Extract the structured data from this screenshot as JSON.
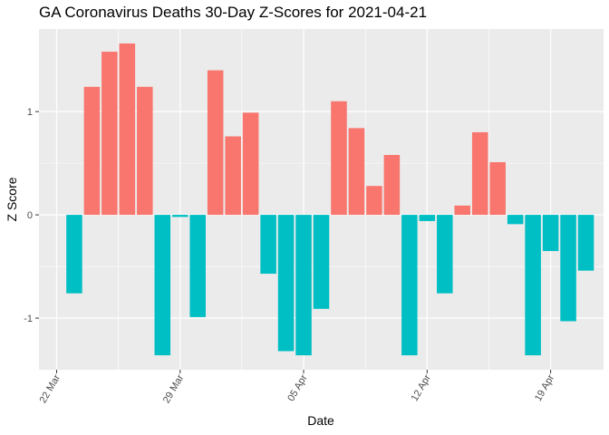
{
  "chart_data": {
    "type": "bar",
    "title": "GA Coronavirus Deaths 30-Day Z-Scores for 2021-04-21",
    "xlabel": "Date",
    "ylabel": "Z Score",
    "x_ticks": [
      {
        "label": "22 Mar",
        "day": 0
      },
      {
        "label": "29 Mar",
        "day": 7
      },
      {
        "label": "05 Apr",
        "day": 14
      },
      {
        "label": "12 Apr",
        "day": 21
      },
      {
        "label": "19 Apr",
        "day": 28
      }
    ],
    "xlim_days": [
      -1,
      31
    ],
    "y_ticks": [
      -1,
      0,
      1
    ],
    "ylim": [
      -1.5,
      1.8
    ],
    "colors": {
      "positive": "#F8766D",
      "negative": "#00BFC4"
    },
    "dates": [
      "2021-03-23",
      "2021-03-24",
      "2021-03-25",
      "2021-03-26",
      "2021-03-27",
      "2021-03-28",
      "2021-03-29",
      "2021-03-30",
      "2021-03-31",
      "2021-04-01",
      "2021-04-02",
      "2021-04-03",
      "2021-04-04",
      "2021-04-05",
      "2021-04-06",
      "2021-04-07",
      "2021-04-08",
      "2021-04-09",
      "2021-04-10",
      "2021-04-11",
      "2021-04-12",
      "2021-04-13",
      "2021-04-14",
      "2021-04-15",
      "2021-04-16",
      "2021-04-17",
      "2021-04-18",
      "2021-04-19",
      "2021-04-20",
      "2021-04-21"
    ],
    "values": [
      -0.76,
      1.24,
      1.58,
      1.66,
      1.24,
      -1.36,
      -0.02,
      -0.99,
      1.4,
      0.76,
      0.99,
      -0.57,
      -1.32,
      -1.36,
      -0.91,
      1.1,
      0.84,
      0.28,
      0.58,
      -1.36,
      -0.06,
      -0.76,
      0.09,
      0.8,
      0.51,
      -0.09,
      -1.36,
      -0.35,
      -1.03,
      -0.54
    ]
  }
}
